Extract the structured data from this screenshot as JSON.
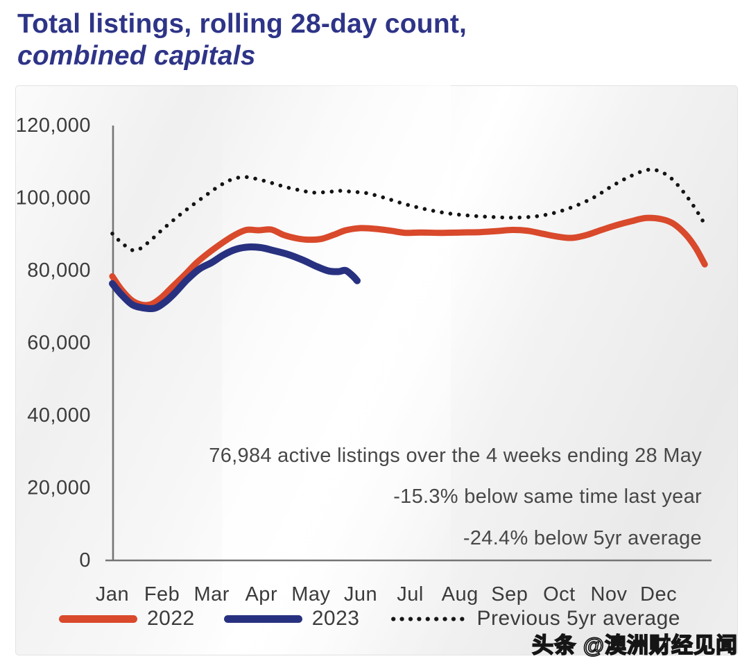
{
  "title": {
    "line1": "Total listings, rolling 28-day count,",
    "line2": "combined capitals"
  },
  "annotations": {
    "line1": "76,984 active listings over the 4 weeks ending 28 May",
    "line2": "-15.3% below same time last year",
    "line3": "-24.4% below 5yr average"
  },
  "watermark": "头条 @澳洲财经见闻",
  "colors": {
    "title": "#2e3487",
    "series_2022": "#d9492b",
    "series_2023": "#283180",
    "series_avg": "#141414",
    "axis": "#757575",
    "tick_text": "#3b3b3b",
    "annotation_text": "#474747"
  },
  "legend": {
    "items": [
      {
        "label": "2022",
        "style": "solid",
        "color": "#d9492b"
      },
      {
        "label": "2023",
        "style": "solid",
        "color": "#283180"
      },
      {
        "label": "Previous 5yr average",
        "style": "dotted",
        "color": "#141414"
      }
    ]
  },
  "chart_data": {
    "type": "line",
    "title": "Total listings, rolling 28-day count, combined capitals",
    "xlabel": "",
    "ylabel": "",
    "x_categories": [
      "Jan",
      "Feb",
      "Mar",
      "Apr",
      "May",
      "Jun",
      "Jul",
      "Aug",
      "Sep",
      "Oct",
      "Nov",
      "Dec"
    ],
    "x_unit": "months, 0 = 1 Jan, 12 = 31 Dec",
    "xlim": [
      0,
      12
    ],
    "ylim": [
      0,
      120000
    ],
    "y_tick_values": [
      0,
      20000,
      40000,
      60000,
      80000,
      100000,
      120000
    ],
    "y_tick_labels": [
      "0",
      "20,000",
      "40,000",
      "60,000",
      "80,000",
      "100,000",
      "120,000"
    ],
    "grid": false,
    "legend_position": "bottom",
    "series": [
      {
        "name": "2022",
        "style": "solid",
        "color": "#d9492b",
        "points": [
          [
            0.0,
            78200
          ],
          [
            0.18,
            74600
          ],
          [
            0.4,
            71500
          ],
          [
            0.62,
            70300
          ],
          [
            0.8,
            70600
          ],
          [
            1.0,
            72500
          ],
          [
            1.2,
            75200
          ],
          [
            1.45,
            78500
          ],
          [
            1.7,
            82000
          ],
          [
            1.95,
            84800
          ],
          [
            2.2,
            87300
          ],
          [
            2.45,
            89500
          ],
          [
            2.7,
            91000
          ],
          [
            2.95,
            90900
          ],
          [
            3.2,
            91100
          ],
          [
            3.45,
            89600
          ],
          [
            3.7,
            88700
          ],
          [
            3.95,
            88300
          ],
          [
            4.2,
            88500
          ],
          [
            4.45,
            89600
          ],
          [
            4.7,
            90900
          ],
          [
            5.0,
            91500
          ],
          [
            5.3,
            91300
          ],
          [
            5.6,
            90800
          ],
          [
            5.9,
            90200
          ],
          [
            6.2,
            90300
          ],
          [
            6.6,
            90200
          ],
          [
            7.0,
            90300
          ],
          [
            7.4,
            90400
          ],
          [
            7.75,
            90700
          ],
          [
            8.05,
            91000
          ],
          [
            8.35,
            90800
          ],
          [
            8.65,
            90000
          ],
          [
            8.95,
            89200
          ],
          [
            9.25,
            88800
          ],
          [
            9.55,
            89600
          ],
          [
            9.85,
            91000
          ],
          [
            10.15,
            92300
          ],
          [
            10.45,
            93400
          ],
          [
            10.75,
            94300
          ],
          [
            11.05,
            94000
          ],
          [
            11.3,
            92700
          ],
          [
            11.55,
            89700
          ],
          [
            11.75,
            86000
          ],
          [
            11.93,
            81500
          ]
        ]
      },
      {
        "name": "2023",
        "style": "solid",
        "color": "#283180",
        "points": [
          [
            0.0,
            76200
          ],
          [
            0.18,
            73200
          ],
          [
            0.4,
            70400
          ],
          [
            0.62,
            69500
          ],
          [
            0.85,
            69400
          ],
          [
            1.05,
            71000
          ],
          [
            1.25,
            73500
          ],
          [
            1.5,
            77200
          ],
          [
            1.75,
            80200
          ],
          [
            2.0,
            82000
          ],
          [
            2.25,
            84200
          ],
          [
            2.5,
            85700
          ],
          [
            2.75,
            86300
          ],
          [
            3.0,
            86100
          ],
          [
            3.25,
            85300
          ],
          [
            3.55,
            84200
          ],
          [
            3.85,
            82600
          ],
          [
            4.1,
            81000
          ],
          [
            4.35,
            79700
          ],
          [
            4.55,
            79500
          ],
          [
            4.7,
            79800
          ],
          [
            4.85,
            78200
          ],
          [
            4.93,
            76984
          ]
        ]
      },
      {
        "name": "Previous 5yr average",
        "style": "dotted",
        "color": "#141414",
        "points": [
          [
            0.0,
            90000
          ],
          [
            0.2,
            87300
          ],
          [
            0.45,
            85300
          ],
          [
            0.7,
            87300
          ],
          [
            1.0,
            91000
          ],
          [
            1.3,
            94500
          ],
          [
            1.6,
            97700
          ],
          [
            1.9,
            100700
          ],
          [
            2.15,
            103100
          ],
          [
            2.4,
            104900
          ],
          [
            2.65,
            105600
          ],
          [
            2.9,
            105100
          ],
          [
            3.2,
            104000
          ],
          [
            3.5,
            102800
          ],
          [
            3.8,
            101900
          ],
          [
            4.05,
            101300
          ],
          [
            4.35,
            101500
          ],
          [
            4.6,
            101800
          ],
          [
            4.85,
            101500
          ],
          [
            5.1,
            101200
          ],
          [
            5.45,
            100000
          ],
          [
            5.85,
            98300
          ],
          [
            6.25,
            96900
          ],
          [
            6.7,
            95700
          ],
          [
            7.15,
            95000
          ],
          [
            7.6,
            94600
          ],
          [
            8.05,
            94400
          ],
          [
            8.5,
            94700
          ],
          [
            8.9,
            95700
          ],
          [
            9.3,
            97500
          ],
          [
            9.7,
            100000
          ],
          [
            10.05,
            103000
          ],
          [
            10.4,
            105600
          ],
          [
            10.75,
            107500
          ],
          [
            11.0,
            107300
          ],
          [
            11.25,
            105300
          ],
          [
            11.5,
            101500
          ],
          [
            11.72,
            97300
          ],
          [
            11.9,
            93300
          ]
        ]
      }
    ],
    "annotations": [
      "76,984 active listings over the 4 weeks ending 28 May",
      "-15.3% below same time last year",
      "-24.4% below 5yr average"
    ]
  }
}
